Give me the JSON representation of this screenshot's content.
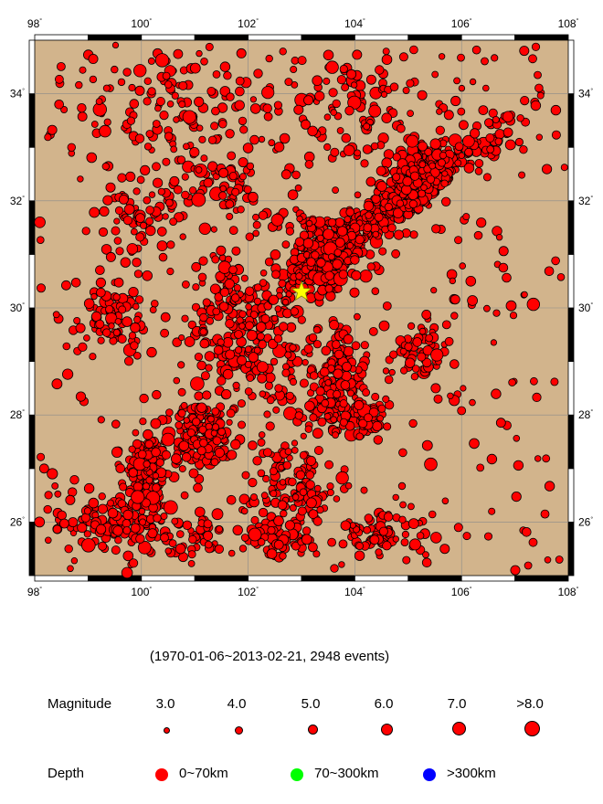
{
  "map": {
    "lon_range": [
      98,
      108
    ],
    "lat_range": [
      25,
      35
    ],
    "x_ticks": [
      "98",
      "100",
      "102",
      "104",
      "106",
      "108"
    ],
    "y_ticks": [
      "26",
      "28",
      "30",
      "32",
      "34"
    ],
    "land_color": "#d2b48c",
    "event_color": "#ff0000",
    "star": {
      "lon": 103.0,
      "lat": 30.3,
      "color": "#ffff00"
    },
    "clusters": [
      {
        "lon": 104.6,
        "lat": 31.8,
        "spread": [
          1.1,
          0.9
        ],
        "count": 520
      },
      {
        "lon": 103.5,
        "lat": 31.0,
        "spread": [
          0.45,
          0.5
        ],
        "count": 260
      },
      {
        "lon": 105.2,
        "lat": 32.6,
        "spread": [
          0.5,
          0.35
        ],
        "count": 180
      },
      {
        "lon": 101.2,
        "lat": 27.6,
        "spread": [
          0.45,
          0.5
        ],
        "count": 170
      },
      {
        "lon": 100.1,
        "lat": 27.0,
        "spread": [
          0.35,
          0.6
        ],
        "count": 150
      },
      {
        "lon": 99.6,
        "lat": 26.0,
        "spread": [
          0.9,
          0.45
        ],
        "count": 130
      },
      {
        "lon": 103.7,
        "lat": 28.7,
        "spread": [
          0.35,
          0.8
        ],
        "count": 130
      },
      {
        "lon": 104.2,
        "lat": 28.0,
        "spread": [
          0.3,
          0.3
        ],
        "count": 60
      },
      {
        "lon": 102.0,
        "lat": 29.3,
        "spread": [
          0.9,
          0.7
        ],
        "count": 120
      },
      {
        "lon": 102.8,
        "lat": 26.8,
        "spread": [
          0.8,
          0.9
        ],
        "count": 120
      },
      {
        "lon": 104.5,
        "lat": 25.8,
        "spread": [
          0.7,
          0.3
        ],
        "count": 70
      },
      {
        "lon": 99.5,
        "lat": 29.8,
        "spread": [
          0.6,
          0.5
        ],
        "count": 80
      },
      {
        "lon": 100.0,
        "lat": 31.8,
        "spread": [
          0.5,
          0.5
        ],
        "count": 60
      },
      {
        "lon": 101.5,
        "lat": 32.2,
        "spread": [
          0.8,
          0.5
        ],
        "count": 60
      },
      {
        "lon": 100.5,
        "lat": 33.8,
        "spread": [
          1.6,
          0.9
        ],
        "count": 110
      },
      {
        "lon": 104.0,
        "lat": 33.8,
        "spread": [
          1.4,
          0.9
        ],
        "count": 90
      },
      {
        "lon": 105.2,
        "lat": 29.2,
        "spread": [
          0.5,
          0.4
        ],
        "count": 60
      },
      {
        "lon": 101.6,
        "lat": 30.4,
        "spread": [
          0.5,
          0.5
        ],
        "count": 50
      },
      {
        "lon": 102.6,
        "lat": 25.7,
        "spread": [
          0.6,
          0.3
        ],
        "count": 60
      },
      {
        "lon": 101.0,
        "lat": 25.7,
        "spread": [
          0.5,
          0.3
        ],
        "count": 40
      },
      {
        "lon": 103.0,
        "lat": 31.5,
        "spread": [
          0.7,
          0.5
        ],
        "count": 40
      },
      {
        "lon": 103.0,
        "lat": 28.5,
        "spread": [
          0.6,
          0.6
        ],
        "count": 50
      }
    ]
  },
  "caption": "(1970-01-06~2013-02-21, 2948 events)",
  "legend": {
    "magnitude_label": "Magnitude",
    "magnitudes": [
      "3.0",
      "4.0",
      "5.0",
      "6.0",
      "7.0",
      ">8.0"
    ],
    "depth_label": "Depth",
    "depths": [
      {
        "label": "0~70km",
        "color": "#ff0000"
      },
      {
        "label": "70~300km",
        "color": "#00ff00"
      },
      {
        "label": ">300km",
        "color": "#0000ff"
      }
    ]
  }
}
